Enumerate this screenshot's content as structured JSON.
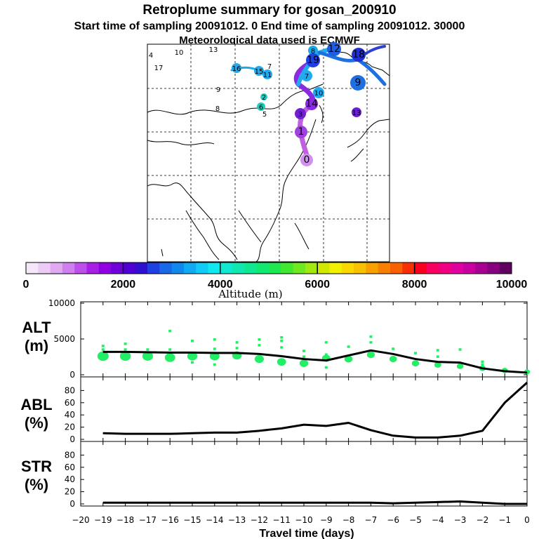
{
  "title": {
    "line1": "Retroplume summary for gosan_200910",
    "line2": "Start time of sampling 20091012.     0     End time of sampling 20091012. 30000",
    "line3": "Meteorological data used is ECMWF"
  },
  "colors": {
    "alt_dots": "#22ee66",
    "line": "#000000",
    "trajectory_blue": "#1e6fe0",
    "trajectory_cyan": "#22aaee",
    "trajectory_purple": "#8a2be2",
    "trajectory_violet": "#c060e0"
  },
  "colorbar": {
    "title": "Altitude (m)",
    "tick_labels": [
      "0",
      "2000",
      "4000",
      "6000",
      "8000",
      "10000"
    ],
    "colors": [
      "#f6e6fa",
      "#ecccf6",
      "#e0aaf2",
      "#d080ee",
      "#bd50ea",
      "#a820e6",
      "#9000e0",
      "#7000d8",
      "#5000d0",
      "#3010d0",
      "#2040e0",
      "#1868e8",
      "#1088ee",
      "#10aaf2",
      "#10ccf4",
      "#10e8f0",
      "#10e8d0",
      "#10e8b0",
      "#10e890",
      "#10e870",
      "#20e850",
      "#40e830",
      "#70e820",
      "#a0e810",
      "#d0e800",
      "#f0f000",
      "#f8d800",
      "#f8c000",
      "#f8a000",
      "#f88000",
      "#f86000",
      "#f83000",
      "#f80020",
      "#f80060",
      "#f00080",
      "#e000a0",
      "#c800a0",
      "#a80090",
      "#880080",
      "#600060"
    ]
  },
  "map": {
    "labels": [
      {
        "text": "4",
        "kind": "plain"
      },
      {
        "text": "10",
        "kind": "plain"
      },
      {
        "text": "13",
        "kind": "plain"
      },
      {
        "text": "17",
        "kind": "plain"
      },
      {
        "text": "16",
        "kind": "dot"
      },
      {
        "text": "15",
        "kind": "dot"
      },
      {
        "text": "11",
        "kind": "dot"
      },
      {
        "text": "7",
        "kind": "plain"
      },
      {
        "text": "9",
        "kind": "plain"
      },
      {
        "text": "8",
        "kind": "plain"
      },
      {
        "text": "2",
        "kind": "dot"
      },
      {
        "text": "6",
        "kind": "dot"
      },
      {
        "text": "5",
        "kind": "plain"
      },
      {
        "text": "8",
        "kind": "dot"
      },
      {
        "text": "12",
        "kind": "dot"
      },
      {
        "text": "19",
        "kind": "dot"
      },
      {
        "text": "18",
        "kind": "dot"
      },
      {
        "text": "14",
        "kind": "dot"
      },
      {
        "text": "9",
        "kind": "dot"
      },
      {
        "text": "10",
        "kind": "dot"
      },
      {
        "text": "7",
        "kind": "dot"
      },
      {
        "text": "13",
        "kind": "dot"
      },
      {
        "text": "3",
        "kind": "dot"
      },
      {
        "text": "1",
        "kind": "dot"
      },
      {
        "text": "0",
        "kind": "dot"
      }
    ]
  },
  "chart_data": [
    {
      "type": "scatter+line",
      "panel_label": "ALT\n(m)",
      "ylabel": "ALT",
      "yunit": "(m)",
      "ylim": [
        0,
        10000
      ],
      "yticks": [
        0,
        5000,
        10000
      ],
      "x": [
        -19,
        -18,
        -17,
        -16,
        -15,
        -14,
        -13,
        -12,
        -11,
        -10,
        -9,
        -8,
        -7,
        -6,
        -5,
        -4,
        -3,
        -2,
        -1,
        0
      ],
      "line_values": [
        3200,
        3200,
        3150,
        3100,
        3100,
        3050,
        3050,
        2900,
        2600,
        2200,
        2000,
        2700,
        3400,
        2900,
        2200,
        1800,
        1700,
        900,
        500,
        300
      ],
      "dots_large": [
        [
          -19,
          2600
        ],
        [
          -18,
          2600
        ],
        [
          -17,
          2600
        ],
        [
          -16,
          2400
        ],
        [
          -15,
          2600
        ],
        [
          -14,
          2600
        ],
        [
          -13,
          2700
        ],
        [
          -12,
          2200
        ],
        [
          -11,
          1800
        ],
        [
          -10,
          1600
        ],
        [
          -9,
          2300
        ],
        [
          -8,
          2200
        ],
        [
          -7,
          2800
        ],
        [
          -6,
          2200
        ],
        [
          -5,
          1600
        ],
        [
          -4,
          1400
        ],
        [
          -3,
          1200
        ],
        [
          -2,
          900
        ],
        [
          -1,
          600
        ],
        [
          0,
          400
        ]
      ],
      "dots_small": [
        [
          -19,
          3500
        ],
        [
          -19,
          4000
        ],
        [
          -18,
          3500
        ],
        [
          -18,
          4300
        ],
        [
          -17,
          3500
        ],
        [
          -16,
          3500
        ],
        [
          -16,
          6100
        ],
        [
          -15,
          4700
        ],
        [
          -15,
          1700
        ],
        [
          -14,
          4900
        ],
        [
          -14,
          3600
        ],
        [
          -14,
          1400
        ],
        [
          -13,
          4500
        ],
        [
          -13,
          3700
        ],
        [
          -12,
          4100
        ],
        [
          -12,
          4900
        ],
        [
          -11,
          4700
        ],
        [
          -11,
          3800
        ],
        [
          -11,
          5200
        ],
        [
          -10,
          3300
        ],
        [
          -10,
          2500
        ],
        [
          -9,
          4500
        ],
        [
          -9,
          2800
        ],
        [
          -9,
          1000
        ],
        [
          -8,
          3900
        ],
        [
          -7,
          4500
        ],
        [
          -7,
          5300
        ],
        [
          -6,
          3600
        ],
        [
          -5,
          3000
        ],
        [
          -4,
          2500
        ],
        [
          -4,
          3400
        ],
        [
          -3,
          3500
        ],
        [
          -2,
          1400
        ],
        [
          -2,
          1800
        ]
      ]
    },
    {
      "type": "line",
      "panel_label": "ABL\n(%)",
      "ylabel": "ABL",
      "yunit": "(%)",
      "ylim": [
        0,
        100
      ],
      "yticks": [
        0,
        20,
        40,
        60,
        80
      ],
      "x": [
        -19,
        -18,
        -17,
        -16,
        -15,
        -14,
        -13,
        -12,
        -11,
        -10,
        -9,
        -8,
        -7,
        -6,
        -5,
        -4,
        -3,
        -2,
        -1,
        0
      ],
      "values": [
        10,
        9,
        9,
        9,
        10,
        11,
        11,
        14,
        18,
        24,
        22,
        27,
        15,
        6,
        3,
        3,
        6,
        14,
        60,
        93
      ]
    },
    {
      "type": "line",
      "panel_label": "STR\n(%)",
      "ylabel": "STR",
      "yunit": "(%)",
      "ylim": [
        0,
        100
      ],
      "yticks": [
        0,
        20,
        40,
        60,
        80
      ],
      "xlabel": "Travel time (days)",
      "xlim": [
        -20,
        0
      ],
      "xticks": [
        "-20",
        "-19",
        "-18",
        "-17",
        "-16",
        "-15",
        "-14",
        "-13",
        "-12",
        "-11",
        "-10",
        "-9",
        "-8",
        "-7",
        "-6",
        "-5",
        "-4",
        "-3",
        "-2",
        "-1",
        "0"
      ],
      "x": [
        -19,
        -18,
        -17,
        -16,
        -15,
        -14,
        -13,
        -12,
        -11,
        -10,
        -9,
        -8,
        -7,
        -6,
        -5,
        -4,
        -3,
        -2,
        -1,
        0
      ],
      "values": [
        2,
        2,
        2,
        2,
        2,
        2,
        2,
        2,
        2,
        2,
        2,
        2,
        2,
        1,
        2,
        3,
        4,
        2,
        0,
        0
      ]
    }
  ]
}
